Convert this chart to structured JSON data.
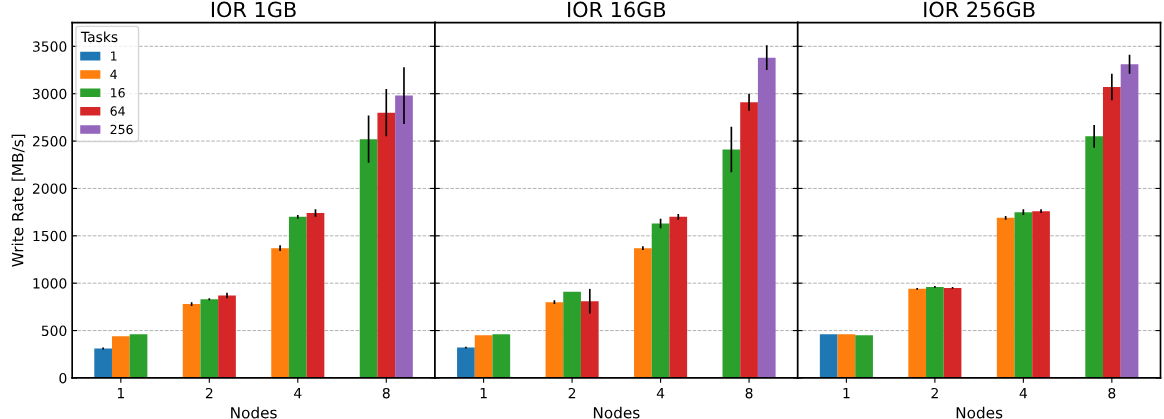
{
  "chart_data": [
    {
      "type": "bar",
      "title": "IOR 1GB",
      "xlabel": "Nodes",
      "ylabel": "Write Rate [MB/s]",
      "legend_title": "Tasks",
      "legend": "top left",
      "grid": "y",
      "categories": [
        "1",
        "2",
        "4",
        "8"
      ],
      "ylim": [
        0,
        3750
      ],
      "yticks": [
        0,
        500,
        1000,
        1500,
        2000,
        2500,
        3000,
        3500
      ],
      "series": [
        {
          "name": "1",
          "color": "#1f77b4",
          "values": [
            310,
            null,
            null,
            null
          ],
          "errors": [
            10,
            null,
            null,
            null
          ]
        },
        {
          "name": "4",
          "color": "#ff7f0e",
          "values": [
            440,
            780,
            1370,
            null
          ],
          "errors": [
            null,
            20,
            30,
            null
          ]
        },
        {
          "name": "16",
          "color": "#2ca02c",
          "values": [
            460,
            830,
            1700,
            2520
          ],
          "errors": [
            null,
            10,
            20,
            250
          ]
        },
        {
          "name": "64",
          "color": "#d62728",
          "values": [
            null,
            870,
            1740,
            2800
          ],
          "errors": [
            null,
            30,
            40,
            250
          ]
        },
        {
          "name": "256",
          "color": "#9467bd",
          "values": [
            null,
            null,
            null,
            2980
          ],
          "errors": [
            null,
            null,
            null,
            300
          ]
        }
      ]
    },
    {
      "type": "bar",
      "title": "IOR 16GB",
      "xlabel": "Nodes",
      "grid": "y",
      "tick_labels": "x",
      "categories": [
        "1",
        "2",
        "4",
        "8"
      ],
      "ylim": [
        0,
        3750
      ],
      "yticks": [
        0,
        500,
        1000,
        1500,
        2000,
        2500,
        3000,
        3500
      ],
      "series": [
        {
          "color": "#1f77b4",
          "values": [
            320,
            null,
            null,
            null
          ],
          "errors": [
            10,
            null,
            null,
            null
          ]
        },
        {
          "color": "#ff7f0e",
          "values": [
            450,
            800,
            1370,
            null
          ],
          "errors": [
            null,
            20,
            20,
            null
          ]
        },
        {
          "color": "#2ca02c",
          "values": [
            460,
            910,
            1630,
            2410
          ],
          "errors": [
            null,
            null,
            50,
            240
          ]
        },
        {
          "color": "#d62728",
          "values": [
            null,
            810,
            1700,
            2910
          ],
          "errors": [
            null,
            130,
            30,
            90
          ]
        },
        {
          "color": "#9467bd",
          "values": [
            null,
            null,
            null,
            3380
          ],
          "errors": [
            null,
            null,
            null,
            130
          ]
        }
      ]
    },
    {
      "type": "bar",
      "title": "IOR 256GB",
      "xlabel": "Nodes",
      "grid": "y",
      "tick_labels": "x",
      "categories": [
        "1",
        "2",
        "4",
        "8"
      ],
      "ylim": [
        0,
        3750
      ],
      "yticks": [
        0,
        500,
        1000,
        1500,
        2000,
        2500,
        3000,
        3500
      ],
      "series": [
        {
          "color": "#1f77b4",
          "values": [
            460,
            null,
            null,
            null
          ],
          "errors": [
            null,
            null,
            null,
            null
          ]
        },
        {
          "color": "#ff7f0e",
          "values": [
            460,
            940,
            1690,
            null
          ],
          "errors": [
            null,
            10,
            20,
            null
          ]
        },
        {
          "color": "#2ca02c",
          "values": [
            450,
            960,
            1750,
            2550
          ],
          "errors": [
            null,
            10,
            30,
            120
          ]
        },
        {
          "color": "#d62728",
          "values": [
            null,
            950,
            1760,
            3070
          ],
          "errors": [
            null,
            10,
            20,
            140
          ]
        },
        {
          "color": "#9467bd",
          "values": [
            null,
            null,
            null,
            3310
          ],
          "errors": [
            null,
            null,
            null,
            100
          ]
        }
      ]
    }
  ]
}
